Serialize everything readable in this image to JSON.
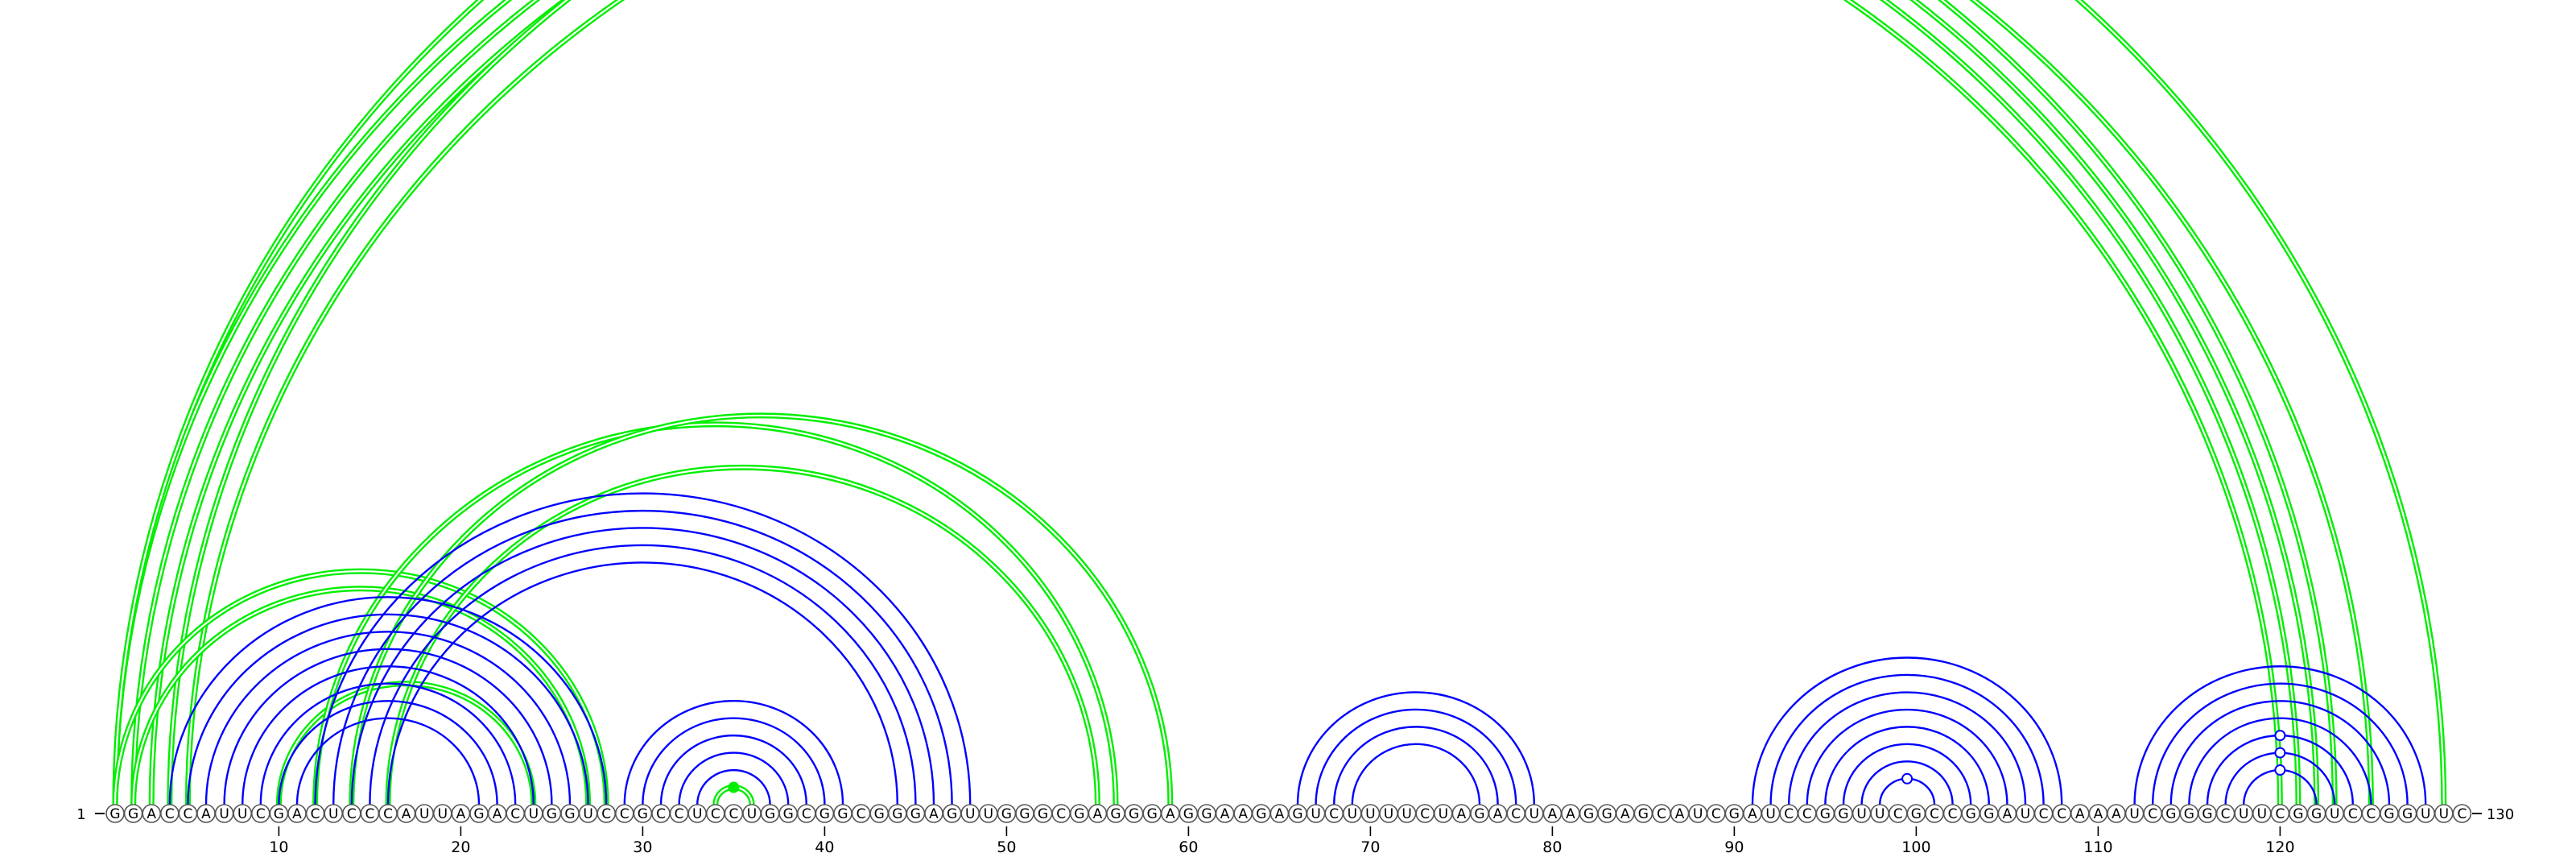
{
  "sequence": {
    "start_label": "1",
    "end_label": "130",
    "bases": [
      "G",
      "G",
      "A",
      "C",
      "C",
      "A",
      "U",
      "U",
      "C",
      "G",
      "A",
      "C",
      "U",
      "C",
      "C",
      "C",
      "A",
      "U",
      "U",
      "A",
      "G",
      "A",
      "C",
      "U",
      "G",
      "G",
      "U",
      "C",
      "C",
      "G",
      "C",
      "C",
      "U",
      "C",
      "C",
      "U",
      "G",
      "G",
      "C",
      "G",
      "G",
      "C",
      "G",
      "G",
      "G",
      "A",
      "G",
      "U",
      "U",
      "G",
      "G",
      "G",
      "C",
      "G",
      "A",
      "G",
      "G",
      "G",
      "A",
      "G",
      "G",
      "A",
      "A",
      "G",
      "A",
      "G",
      "U",
      "C",
      "U",
      "U",
      "U",
      "U",
      "C",
      "U",
      "A",
      "G",
      "A",
      "C",
      "U",
      "A",
      "A",
      "G",
      "G",
      "A",
      "G",
      "C",
      "A",
      "U",
      "C",
      "G",
      "A",
      "U",
      "C",
      "C",
      "G",
      "G",
      "U",
      "U",
      "C",
      "G",
      "C",
      "C",
      "G",
      "G",
      "A",
      "U",
      "C",
      "C",
      "A",
      "A",
      "A",
      "U",
      "C",
      "G",
      "G",
      "G",
      "C",
      "U",
      "U",
      "C",
      "G",
      "G",
      "U",
      "C",
      "C",
      "G",
      "G",
      "U",
      "U",
      "C"
    ]
  },
  "axis": {
    "ticks": [
      "10",
      "20",
      "30",
      "40",
      "50",
      "60",
      "70",
      "80",
      "90",
      "100",
      "110",
      "120"
    ]
  },
  "colors": {
    "secondary_structure": "#0000ff",
    "tertiary_structure": "#00ee00",
    "base_fill": "#ffffff",
    "base_stroke": "#555555",
    "text": "#000000"
  },
  "chart_data": {
    "type": "arc",
    "blue_pairs": [
      [
        4,
        28
      ],
      [
        5,
        27
      ],
      [
        6,
        26
      ],
      [
        7,
        25
      ],
      [
        8,
        24
      ],
      [
        9,
        23
      ],
      [
        10,
        22
      ],
      [
        11,
        21
      ],
      [
        12,
        48
      ],
      [
        13,
        47
      ],
      [
        14,
        46
      ],
      [
        15,
        45
      ],
      [
        16,
        44
      ],
      [
        29,
        41
      ],
      [
        30,
        40
      ],
      [
        31,
        39
      ],
      [
        32,
        38
      ],
      [
        33,
        37
      ],
      [
        66,
        79
      ],
      [
        67,
        78
      ],
      [
        68,
        77
      ],
      [
        69,
        76
      ],
      [
        91,
        108
      ],
      [
        92,
        107
      ],
      [
        93,
        106
      ],
      [
        94,
        105
      ],
      [
        95,
        104
      ],
      [
        96,
        103
      ],
      [
        97,
        102
      ],
      [
        98,
        101
      ],
      [
        112,
        128
      ],
      [
        113,
        127
      ],
      [
        114,
        126
      ],
      [
        115,
        125
      ],
      [
        116,
        124
      ],
      [
        117,
        123
      ],
      [
        118,
        122
      ]
    ],
    "green_pairs": [
      [
        1,
        123
      ],
      [
        2,
        122
      ],
      [
        3,
        121
      ],
      [
        4,
        125
      ],
      [
        5,
        120
      ],
      [
        1,
        129
      ],
      [
        1,
        28
      ],
      [
        2,
        27
      ],
      [
        10,
        24
      ],
      [
        12,
        56
      ],
      [
        14,
        59
      ],
      [
        16,
        55
      ],
      [
        34,
        36
      ]
    ],
    "markers": [
      {
        "color": "green",
        "pair": [
          34,
          36
        ]
      },
      {
        "color": "blue",
        "pair": [
          98,
          101
        ]
      },
      {
        "color": "blue",
        "pair": [
          118,
          122
        ]
      },
      {
        "color": "blue",
        "pair": [
          117,
          123
        ]
      },
      {
        "color": "blue",
        "pair": [
          116,
          124
        ]
      }
    ]
  }
}
